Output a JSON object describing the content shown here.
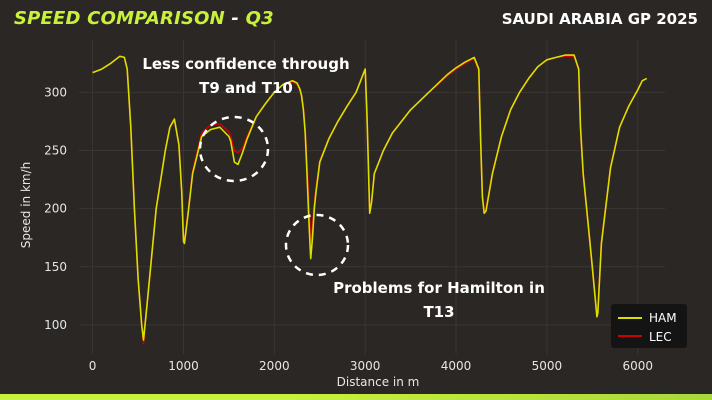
{
  "header": {
    "title": "SPEED COMPARISON",
    "sep": " - ",
    "session": "Q3",
    "race": "SAUDI ARABIA GP 2025"
  },
  "annotations": {
    "top": [
      "Less confidence through",
      "T9 and T10"
    ],
    "bottom": [
      "Problems for Hamilton in",
      "T13"
    ]
  },
  "colors": {
    "ham": "#d9e000",
    "lec": "#cc0000",
    "accent": "#c8f03c",
    "bg": "#2a2725"
  },
  "chart_data": {
    "type": "line",
    "xlabel": "Distance in m",
    "ylabel": "Speed in km/h",
    "xlim": [
      -150,
      6300
    ],
    "ylim": [
      75,
      345
    ],
    "xticks": [
      0,
      1000,
      2000,
      3000,
      4000,
      5000,
      6000
    ],
    "yticks": [
      100,
      150,
      200,
      250,
      300
    ],
    "legend": "bottom-right",
    "series": [
      {
        "name": "HAM",
        "color": "#d9e000",
        "x": [
          0,
          100,
          200,
          300,
          350,
          380,
          420,
          460,
          500,
          540,
          560,
          600,
          700,
          800,
          850,
          900,
          950,
          980,
          1000,
          1010,
          1050,
          1100,
          1200,
          1300,
          1400,
          1500,
          1520,
          1560,
          1600,
          1650,
          1700,
          1800,
          1900,
          2000,
          2100,
          2200,
          2250,
          2280,
          2300,
          2320,
          2340,
          2360,
          2380,
          2400,
          2420,
          2440,
          2460,
          2500,
          2600,
          2700,
          2800,
          2900,
          3000,
          3020,
          3050,
          3070,
          3100,
          3200,
          3300,
          3500,
          3700,
          3900,
          4000,
          4100,
          4200,
          4250,
          4270,
          4290,
          4310,
          4330,
          4400,
          4500,
          4600,
          4700,
          4800,
          4900,
          5000,
          5100,
          5200,
          5300,
          5350,
          5370,
          5400,
          5450,
          5500,
          5550,
          5560,
          5600,
          5700,
          5800,
          5900,
          6000,
          6050,
          6100
        ],
        "y": [
          317,
          320,
          325,
          331,
          330,
          320,
          270,
          200,
          140,
          100,
          87,
          118,
          200,
          250,
          270,
          277,
          255,
          215,
          172,
          170,
          195,
          230,
          262,
          268,
          270,
          262,
          258,
          240,
          238,
          248,
          260,
          279,
          290,
          300,
          307,
          310,
          308,
          303,
          297,
          285,
          265,
          230,
          190,
          157,
          175,
          200,
          215,
          240,
          260,
          275,
          288,
          300,
          320,
          280,
          196,
          205,
          230,
          250,
          265,
          285,
          300,
          315,
          321,
          326,
          330,
          320,
          260,
          210,
          196,
          198,
          230,
          262,
          285,
          300,
          312,
          322,
          328,
          330,
          332,
          332,
          320,
          270,
          230,
          190,
          150,
          107,
          110,
          170,
          235,
          270,
          288,
          302,
          310,
          312
        ]
      },
      {
        "name": "LEC",
        "color": "#cc0000",
        "x": [
          0,
          100,
          200,
          300,
          350,
          380,
          420,
          460,
          500,
          540,
          560,
          600,
          700,
          800,
          850,
          900,
          950,
          980,
          1000,
          1010,
          1050,
          1100,
          1200,
          1300,
          1400,
          1500,
          1520,
          1560,
          1600,
          1650,
          1700,
          1800,
          1900,
          2000,
          2100,
          2200,
          2250,
          2280,
          2300,
          2320,
          2340,
          2360,
          2380,
          2400,
          2420,
          2440,
          2460,
          2500,
          2600,
          2700,
          2800,
          2900,
          3000,
          3020,
          3050,
          3070,
          3100,
          3200,
          3300,
          3500,
          3700,
          3900,
          4000,
          4100,
          4200,
          4250,
          4270,
          4290,
          4310,
          4330,
          4400,
          4500,
          4600,
          4700,
          4800,
          4900,
          5000,
          5100,
          5200,
          5300,
          5350,
          5370,
          5400,
          5450,
          5500,
          5550,
          5560,
          5600,
          5700,
          5800,
          5900,
          6000,
          6050,
          6100
        ],
        "y": [
          317,
          320,
          325,
          331,
          330,
          320,
          270,
          200,
          140,
          100,
          84,
          118,
          200,
          250,
          270,
          276,
          255,
          215,
          174,
          172,
          197,
          232,
          265,
          272,
          273,
          266,
          262,
          250,
          248,
          252,
          262,
          279,
          290,
          300,
          307,
          309,
          307,
          302,
          296,
          286,
          268,
          240,
          205,
          172,
          185,
          205,
          218,
          241,
          260,
          275,
          288,
          300,
          320,
          279,
          198,
          206,
          230,
          250,
          265,
          285,
          300,
          314,
          320,
          325,
          329,
          318,
          258,
          212,
          198,
          200,
          231,
          262,
          285,
          300,
          312,
          322,
          328,
          330,
          331,
          331,
          319,
          268,
          228,
          188,
          148,
          109,
          112,
          172,
          236,
          270,
          288,
          302,
          310,
          312
        ]
      }
    ]
  }
}
